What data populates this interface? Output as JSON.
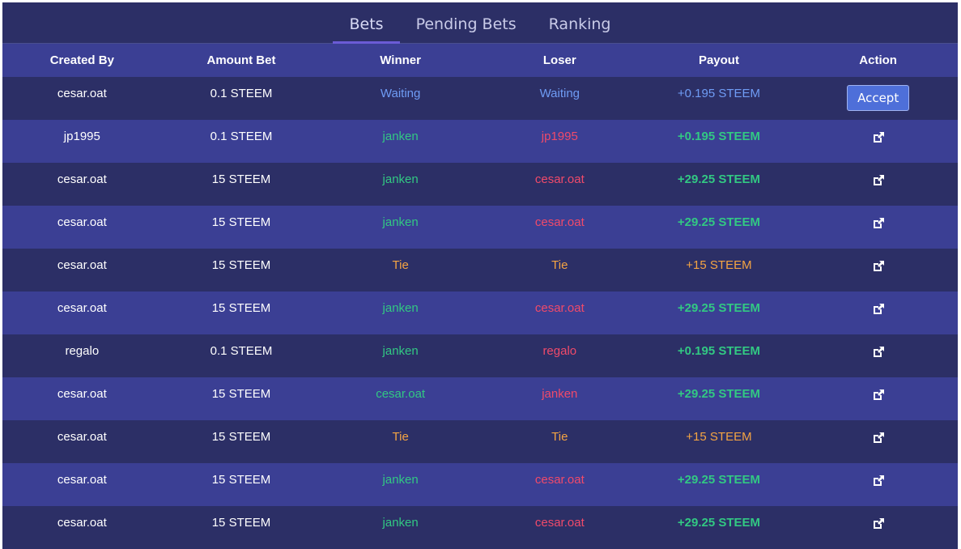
{
  "tabs": [
    {
      "label": "Bets",
      "active": true
    },
    {
      "label": "Pending Bets",
      "active": false
    },
    {
      "label": "Ranking",
      "active": false
    }
  ],
  "columns": [
    "Created By",
    "Amount Bet",
    "Winner",
    "Loser",
    "Payout",
    "Action"
  ],
  "rows": [
    {
      "created_by": "cesar.oat",
      "amount": "0.1 STEEM",
      "winner": "Waiting",
      "loser": "Waiting",
      "payout": "+0.195 STEEM",
      "status": "waiting",
      "action": "Accept"
    },
    {
      "created_by": "jp1995",
      "amount": "0.1 STEEM",
      "winner": "janken",
      "loser": "jp1995",
      "payout": "+0.195 STEEM",
      "status": "done",
      "action": "external-link-icon"
    },
    {
      "created_by": "cesar.oat",
      "amount": "15 STEEM",
      "winner": "janken",
      "loser": "cesar.oat",
      "payout": "+29.25 STEEM",
      "status": "done",
      "action": "external-link-icon"
    },
    {
      "created_by": "cesar.oat",
      "amount": "15 STEEM",
      "winner": "janken",
      "loser": "cesar.oat",
      "payout": "+29.25 STEEM",
      "status": "done",
      "action": "external-link-icon"
    },
    {
      "created_by": "cesar.oat",
      "amount": "15 STEEM",
      "winner": "Tie",
      "loser": "Tie",
      "payout": "+15 STEEM",
      "status": "tie",
      "action": "external-link-icon"
    },
    {
      "created_by": "cesar.oat",
      "amount": "15 STEEM",
      "winner": "janken",
      "loser": "cesar.oat",
      "payout": "+29.25 STEEM",
      "status": "done",
      "action": "external-link-icon"
    },
    {
      "created_by": "regalo",
      "amount": "0.1 STEEM",
      "winner": "janken",
      "loser": "regalo",
      "payout": "+0.195 STEEM",
      "status": "done",
      "action": "external-link-icon"
    },
    {
      "created_by": "cesar.oat",
      "amount": "15 STEEM",
      "winner": "cesar.oat",
      "loser": "janken",
      "payout": "+29.25 STEEM",
      "status": "done",
      "action": "external-link-icon"
    },
    {
      "created_by": "cesar.oat",
      "amount": "15 STEEM",
      "winner": "Tie",
      "loser": "Tie",
      "payout": "+15 STEEM",
      "status": "tie",
      "action": "external-link-icon"
    },
    {
      "created_by": "cesar.oat",
      "amount": "15 STEEM",
      "winner": "janken",
      "loser": "cesar.oat",
      "payout": "+29.25 STEEM",
      "status": "done",
      "action": "external-link-icon"
    },
    {
      "created_by": "cesar.oat",
      "amount": "15 STEEM",
      "winner": "janken",
      "loser": "cesar.oat",
      "payout": "+29.25 STEEM",
      "status": "done",
      "action": "external-link-icon"
    }
  ],
  "colors": {
    "background": "#2c2f66",
    "row_alt": "#3b3f94",
    "winner": "#32c883",
    "loser": "#f04a6a",
    "tie": "#f4a443",
    "waiting": "#6f9cf5",
    "tab_underline": "#6b5bd6"
  }
}
